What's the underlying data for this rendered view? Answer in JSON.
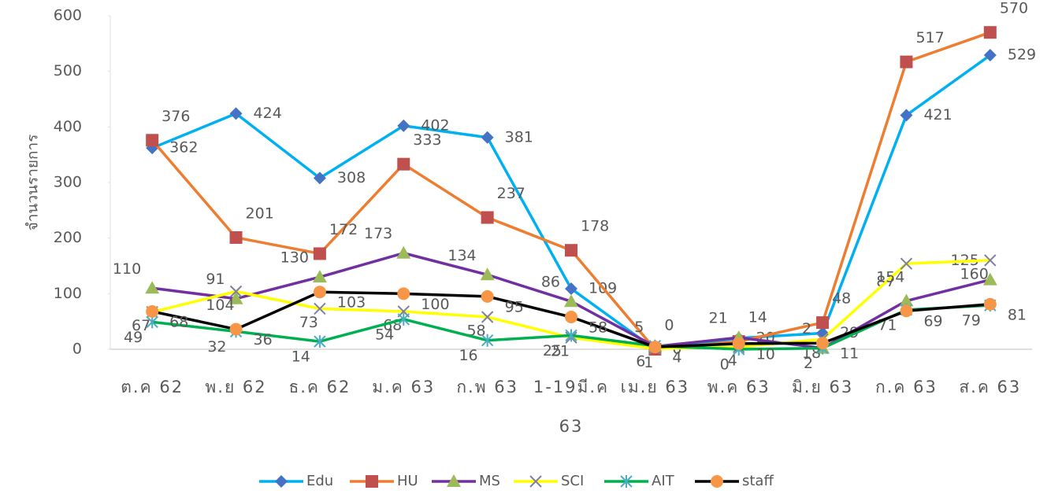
{
  "chart_data": {
    "type": "line",
    "y_label": "จำนวนรายการ",
    "categories": [
      "ต.ค 62",
      "พ.ย 62",
      "ธ.ค 62",
      "ม.ค 63",
      "ก.พ 63",
      "1-19มี.ค 63",
      "เม.ย 63",
      "พ.ค 63",
      "มิ.ย 63",
      "ก.ค 63",
      "ส.ค 63"
    ],
    "ylim": [
      0,
      600
    ],
    "yticks": [
      0,
      100,
      200,
      300,
      400,
      500,
      600
    ],
    "grid": false,
    "legend": "bottom",
    "series": [
      {
        "name": "Edu",
        "color": "#00b0f0",
        "marker": "diamond",
        "marker_color": "#4472c4",
        "label_color": "#00b0f0",
        "values": [
          362,
          424,
          308,
          402,
          381,
          109,
          0,
          20,
          29,
          421,
          529
        ]
      },
      {
        "name": "HU",
        "color": "#ed7d31",
        "marker": "square",
        "marker_color": "#c0504d",
        "label_color": "#ed7d31",
        "values": [
          376,
          201,
          172,
          333,
          237,
          178,
          0,
          14,
          48,
          517,
          570
        ]
      },
      {
        "name": "MS",
        "color": "#7030a0",
        "marker": "triangle",
        "marker_color": "#9bbb59",
        "label_color": "#7030a0",
        "values": [
          110,
          91,
          130,
          173,
          134,
          86,
          5,
          21,
          2,
          87,
          125
        ]
      },
      {
        "name": "SCI",
        "color": "#ffff00",
        "marker": "x",
        "marker_color": "#7f7f9f",
        "label_color": "#ffc000",
        "values": [
          67,
          104,
          73,
          68,
          58,
          21,
          1,
          4,
          18,
          154,
          160
        ]
      },
      {
        "name": "AIT",
        "color": "#00b050",
        "marker": "star",
        "marker_color": "#4bacc6",
        "label_color": "#00b050",
        "values": [
          49,
          32,
          14,
          54,
          16,
          25,
          6,
          0,
          2,
          71,
          79
        ]
      },
      {
        "name": "staff",
        "color": "#000000",
        "marker": "circle",
        "marker_color": "#f79646",
        "label_color": "#000000",
        "values": [
          68,
          36,
          103,
          100,
          95,
          58,
          4,
          10,
          11,
          69,
          81
        ]
      }
    ]
  }
}
